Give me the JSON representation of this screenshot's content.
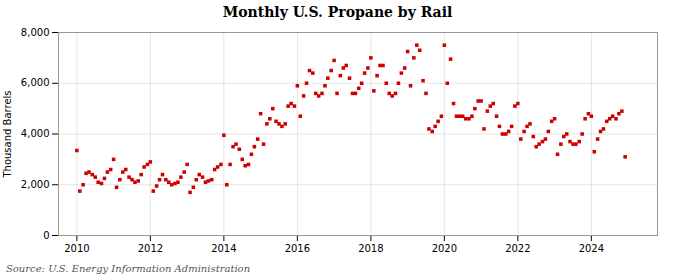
{
  "chart_data": {
    "type": "scatter",
    "title": "Monthly U.S. Propane by Rail",
    "y_label": "Thousand Barrels",
    "annotations": [
      "Source: U.S. Energy Information Administration"
    ],
    "color": "#CC0000",
    "marker": "square",
    "grid": true,
    "xlim": [
      2009.5,
      2025.8
    ],
    "xticks": [
      2010,
      2012,
      2014,
      2016,
      2018,
      2020,
      2022,
      2024
    ],
    "ylim": [
      0,
      8000
    ],
    "yticks": [
      0,
      {
        "value": 2000,
        "label": "2,000"
      },
      {
        "value": 4000,
        "label": "4,000"
      },
      {
        "value": 6000,
        "label": "6,000"
      },
      {
        "value": 8000,
        "label": "8,000"
      }
    ],
    "x": [
      2010.0,
      2010.08,
      2010.17,
      2010.25,
      2010.33,
      2010.42,
      2010.5,
      2010.58,
      2010.67,
      2010.75,
      2010.83,
      2010.92,
      2011.0,
      2011.08,
      2011.17,
      2011.25,
      2011.33,
      2011.42,
      2011.5,
      2011.58,
      2011.67,
      2011.75,
      2011.83,
      2011.92,
      2012.0,
      2012.08,
      2012.17,
      2012.25,
      2012.33,
      2012.42,
      2012.5,
      2012.58,
      2012.67,
      2012.75,
      2012.83,
      2012.92,
      2013.0,
      2013.08,
      2013.17,
      2013.25,
      2013.33,
      2013.42,
      2013.5,
      2013.58,
      2013.67,
      2013.75,
      2013.83,
      2013.92,
      2014.0,
      2014.08,
      2014.17,
      2014.25,
      2014.33,
      2014.42,
      2014.5,
      2014.58,
      2014.67,
      2014.75,
      2014.83,
      2014.92,
      2015.0,
      2015.08,
      2015.17,
      2015.25,
      2015.33,
      2015.42,
      2015.5,
      2015.58,
      2015.67,
      2015.75,
      2015.83,
      2015.92,
      2016.0,
      2016.08,
      2016.17,
      2016.25,
      2016.33,
      2016.42,
      2016.5,
      2016.58,
      2016.67,
      2016.75,
      2016.83,
      2016.92,
      2017.0,
      2017.08,
      2017.17,
      2017.25,
      2017.33,
      2017.42,
      2017.5,
      2017.58,
      2017.67,
      2017.75,
      2017.83,
      2017.92,
      2018.0,
      2018.08,
      2018.17,
      2018.25,
      2018.33,
      2018.42,
      2018.5,
      2018.58,
      2018.67,
      2018.75,
      2018.83,
      2018.92,
      2019.0,
      2019.08,
      2019.17,
      2019.25,
      2019.33,
      2019.42,
      2019.5,
      2019.58,
      2019.67,
      2019.75,
      2019.83,
      2019.92,
      2020.0,
      2020.08,
      2020.17,
      2020.25,
      2020.33,
      2020.42,
      2020.5,
      2020.58,
      2020.67,
      2020.75,
      2020.83,
      2020.92,
      2021.0,
      2021.08,
      2021.17,
      2021.25,
      2021.33,
      2021.42,
      2021.5,
      2021.58,
      2021.67,
      2021.75,
      2021.83,
      2021.92,
      2022.0,
      2022.08,
      2022.17,
      2022.25,
      2022.33,
      2022.42,
      2022.5,
      2022.58,
      2022.67,
      2022.75,
      2022.83,
      2022.92,
      2023.0,
      2023.08,
      2023.17,
      2023.25,
      2023.33,
      2023.42,
      2023.5,
      2023.58,
      2023.67,
      2023.75,
      2023.83,
      2023.92,
      2024.0,
      2024.08,
      2024.17,
      2024.25,
      2024.33,
      2024.42,
      2024.5,
      2024.58,
      2024.67,
      2024.75,
      2024.83,
      2024.92
    ],
    "values": [
      3350,
      1750,
      2000,
      2450,
      2500,
      2400,
      2300,
      2100,
      2050,
      2250,
      2500,
      2600,
      3000,
      1900,
      2200,
      2500,
      2600,
      2300,
      2200,
      2100,
      2150,
      2400,
      2700,
      2800,
      2900,
      1750,
      1950,
      2200,
      2400,
      2200,
      2100,
      2000,
      2050,
      2100,
      2300,
      2500,
      2800,
      1700,
      1900,
      2200,
      2400,
      2300,
      2100,
      2150,
      2200,
      2600,
      2700,
      2800,
      3950,
      2000,
      2800,
      3500,
      3600,
      3400,
      3000,
      2750,
      2800,
      3200,
      3500,
      3800,
      4800,
      3600,
      4400,
      4600,
      5000,
      4500,
      4400,
      4300,
      4400,
      5100,
      5200,
      5100,
      5900,
      4700,
      5500,
      6000,
      6500,
      6400,
      5600,
      5500,
      5600,
      5900,
      6200,
      6500,
      6900,
      5600,
      6300,
      6600,
      6700,
      6200,
      5600,
      5600,
      5800,
      6000,
      6400,
      6600,
      7000,
      5700,
      6300,
      6700,
      6700,
      6000,
      5600,
      5500,
      5600,
      6000,
      6400,
      6600,
      7250,
      5900,
      7000,
      7500,
      7300,
      6100,
      5600,
      4200,
      4100,
      4300,
      4500,
      4700,
      7500,
      6000,
      6950,
      5200,
      4700,
      4700,
      4700,
      4600,
      4600,
      4700,
      5000,
      5300,
      5300,
      4200,
      4900,
      5100,
      5200,
      4700,
      4300,
      4000,
      4000,
      4100,
      4300,
      5100,
      5200,
      3800,
      4100,
      4300,
      4400,
      3900,
      3500,
      3600,
      3700,
      3800,
      4100,
      4500,
      4600,
      3200,
      3600,
      3900,
      4000,
      3700,
      3600,
      3600,
      3700,
      4000,
      4600,
      4800,
      4700,
      3300,
      3800,
      4100,
      4200,
      4500,
      4600,
      4700,
      4600,
      4800,
      4900,
      3100
    ]
  }
}
